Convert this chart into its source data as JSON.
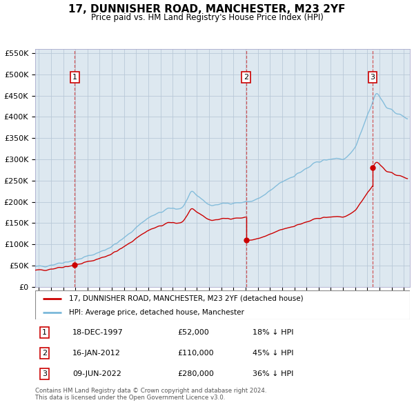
{
  "title": "17, DUNNISHER ROAD, MANCHESTER, M23 2YF",
  "subtitle": "Price paid vs. HM Land Registry's House Price Index (HPI)",
  "legend_line1": "17, DUNNISHER ROAD, MANCHESTER, M23 2YF (detached house)",
  "legend_line2": "HPI: Average price, detached house, Manchester",
  "footer1": "Contains HM Land Registry data © Crown copyright and database right 2024.",
  "footer2": "This data is licensed under the Open Government Licence v3.0.",
  "transactions": [
    {
      "num": 1,
      "date": "18-DEC-1997",
      "price": 52000,
      "pct": "18%",
      "direction": "↓"
    },
    {
      "num": 2,
      "date": "16-JAN-2012",
      "price": 110000,
      "pct": "45%",
      "direction": "↓"
    },
    {
      "num": 3,
      "date": "09-JUN-2022",
      "price": 280000,
      "pct": "36%",
      "direction": "↓"
    }
  ],
  "purchase_dates": [
    1997.96,
    2012.04,
    2022.44
  ],
  "purchase_prices": [
    52000,
    110000,
    280000
  ],
  "hpi_color": "#7ab8d9",
  "price_color": "#cc0000",
  "vline_color": "#cc3333",
  "bg_color": "#dde8f0",
  "grid_color": "#b8c8d8",
  "ylim": [
    0,
    560000
  ],
  "yticks": [
    0,
    50000,
    100000,
    150000,
    200000,
    250000,
    300000,
    350000,
    400000,
    450000,
    500000,
    550000
  ],
  "xstart": 1994.7,
  "xend": 2025.5,
  "hpi_anchors_x": [
    1994.7,
    1995.0,
    1996.0,
    1997.0,
    1997.96,
    1999.0,
    2000.0,
    2001.0,
    2002.0,
    2003.0,
    2004.0,
    2005.0,
    2006.0,
    2007.0,
    2007.5,
    2008.0,
    2008.5,
    2009.0,
    2009.5,
    2010.0,
    2010.5,
    2011.0,
    2011.5,
    2012.04,
    2012.5,
    2013.0,
    2013.5,
    2014.0,
    2014.5,
    2015.0,
    2015.5,
    2016.0,
    2016.5,
    2017.0,
    2017.5,
    2018.0,
    2018.5,
    2019.0,
    2019.5,
    2020.0,
    2020.5,
    2021.0,
    2021.5,
    2022.0,
    2022.44,
    2022.7,
    2023.0,
    2023.3,
    2023.7,
    2024.0,
    2024.5,
    2025.0,
    2025.3
  ],
  "hpi_anchors_y": [
    47000,
    48000,
    52000,
    58000,
    63000,
    72000,
    82000,
    96000,
    115000,
    140000,
    162000,
    175000,
    185000,
    195000,
    220000,
    215000,
    205000,
    193000,
    193000,
    195000,
    197000,
    198000,
    198000,
    200000,
    202000,
    207000,
    215000,
    225000,
    237000,
    247000,
    255000,
    262000,
    270000,
    278000,
    287000,
    295000,
    298000,
    300000,
    303000,
    300000,
    308000,
    330000,
    365000,
    405000,
    435000,
    455000,
    448000,
    435000,
    420000,
    415000,
    408000,
    400000,
    398000
  ]
}
